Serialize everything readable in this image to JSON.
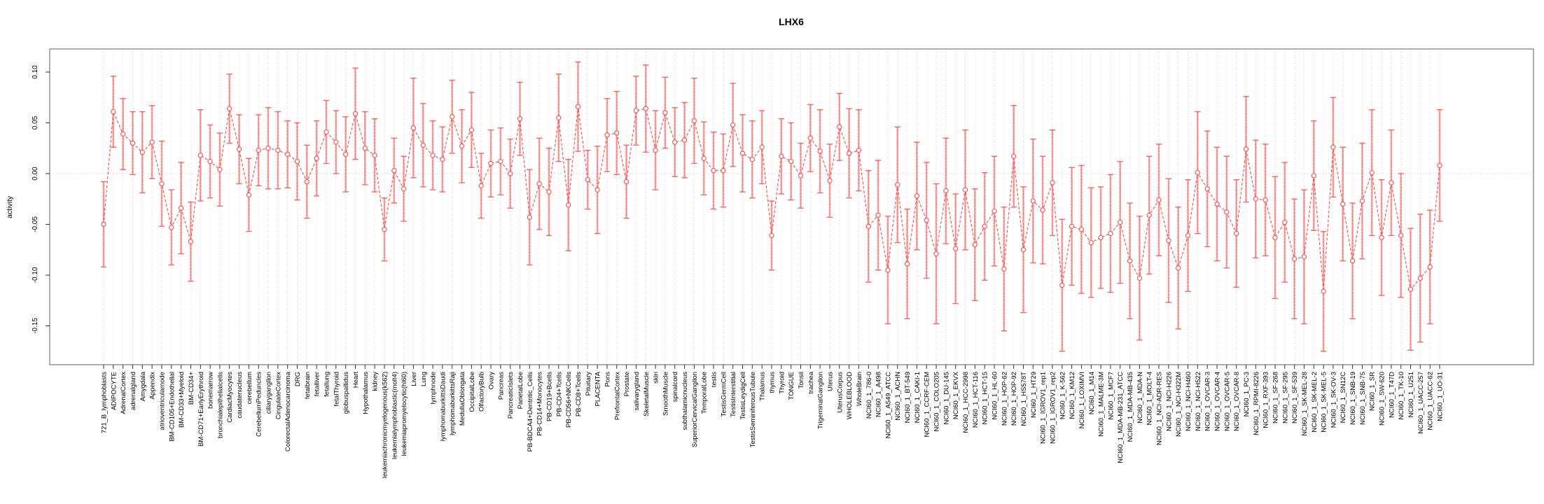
{
  "title": "LHX6",
  "ylabel": "activity",
  "chart_data": {
    "type": "scatter",
    "subtype": "points-with-error-bars",
    "title": "LHX6",
    "xlabel": "",
    "ylabel": "activity",
    "legend": "none",
    "grid": "vertical-dashed-per-category, dotted-zero-line",
    "ylim": [
      -0.188,
      0.123
    ],
    "ytick_labels": [
      "0.10",
      "0.05",
      "0.00",
      "-0.05",
      "-0.10",
      "-0.15"
    ],
    "point_shape": "open-circle",
    "line_style": "dashed-red-connecting-line",
    "colors": {
      "point": "#f0524f",
      "line": "#f0524f",
      "error_bar": "#f9a6a3",
      "error_cap": "#ef6a66",
      "grid": "#dedede",
      "zero_line": "#cfcfcf",
      "box": "#8c8c8c",
      "axis": "#333333"
    },
    "categories": [
      "721_B_lymphoblasts",
      "ADIPOCYTE",
      "AdrenalCortex",
      "adrenalgland",
      "Amygdala",
      "Appendix",
      "atrioventricularnode",
      "BM-CD105+Endothelial",
      "BM-CD33+Myeloid",
      "BM-CD34+",
      "BM-CD71+EarlyErythroid",
      "bonemarrow",
      "bronchialepithelialcells",
      "CardiacMyocytes",
      "caudatenucleus",
      "cerebellum",
      "CerebellumPeduncles",
      "ciliaryganglion",
      "CingulateCortex",
      "ColorectalAdenocarcinoma",
      "DRG",
      "fetalbrain",
      "fetalliver",
      "fetallung",
      "fetalThyroid",
      "globuspallidus",
      "Heart",
      "Hypothalamus",
      "kidney",
      "leukemiachronicmyelogenous(k562)",
      "leukemialymphoblastic(molt4)",
      "leukemiapromyelocytic(hl60)",
      "Liver",
      "Lung",
      "lymphnode",
      "lymphomaburkittsDaudi",
      "lymphomaburkittsRaji",
      "MedullaOblongata",
      "OccipitalLobe",
      "OlfactoryBulb",
      "Ovary",
      "Pancreas",
      "PancreaticIslets",
      "ParietalLobe",
      "PB-BDCA4+Dentritic_Cells",
      "PB-CD14+Monocytes",
      "PB-CD19+Bcells",
      "PB-CD4+Tcells",
      "PB-CD56+NKCells",
      "PB-CD8+Tcells",
      "Pituitary",
      "PLACENTA",
      "Pons",
      "PrefrontalCortex",
      "Prostate",
      "salivarygland",
      "SkeletalMuscle",
      "skin",
      "SmoothMuscle",
      "spinalcord",
      "subthalamicnucleus",
      "SuperiorCervicalGanglion",
      "TemporalLobe",
      "testis",
      "TestisGermCell",
      "TestisInterstitial",
      "TestisLeydigCell",
      "TestisSeminiferousTubule",
      "Thalamus",
      "thymus",
      "Thyroid",
      "TONGUE",
      "Tonsil",
      "trachea",
      "TrigeminalGanglion",
      "Uterus",
      "UterusCorpus",
      "WHOLEBLOOD",
      "WholeBrain",
      "NCI60_1_786-0",
      "NCI60_1_A498",
      "NCI60_1_A549_ATCC",
      "NCI60_1_ACHN",
      "NCI60_1_BT-549",
      "NCI60_1_CAKI-1",
      "NCI60_1_CCRF-CEM",
      "NCI60_1_COLO205",
      "NCI60_1_DU-145",
      "NCI60_1_EKVX",
      "NCI60_1_HCC-2998",
      "NCI60_1_HCT-116",
      "NCI60_1_HCT-15",
      "NCI60_1_HL-60",
      "NCI60_1_HOP-62",
      "NCI60_1_HOP-92",
      "NCI60_1_HS578T",
      "NCI60_1_HT29",
      "NCI60_1_IGROV1_rep1",
      "NCI60_1_IGROV1_rep2",
      "NCI60_1_K-562",
      "NCI60_1_KM12",
      "NCI60_1_LOXIMVI",
      "NCI60_1_M14",
      "NCI60_1_MALME-3M",
      "NCI60_1_MCF7",
      "NCI60_1_MDA-MB-231_ATCC",
      "NCI60_1_MDA-MB-435",
      "NCI60_1_MDA-N",
      "NCI60_1_MOLT-4",
      "NCI60_1_NCI-ADR-RES",
      "NCI60_1_NCI-H226",
      "NCI60_1_NCI-H322M",
      "NCI60_1_NCI-H460",
      "NCI60_1_NCI-H522",
      "NCI60_1_OVCAR-3",
      "NCI60_1_OVCAR-4",
      "NCI60_1_OVCAR-5",
      "NCI60_1_OVCAR-8",
      "NCI60_1_PC-3",
      "NCI60_1_RPMI-8226",
      "NCI60_1_RXF-393",
      "NCI60_1_SF-268",
      "NCI60_1_SF-295",
      "NCI60_1_SF-539",
      "NCI60_1_SK-MEL-28",
      "NCI60_1_SK-MEL-2",
      "NCI60_1_SK-MEL-5",
      "NCI60_1_SK-OV-3",
      "NCI60_1_SN12C",
      "NCI60_1_SNB-19",
      "NCI60_1_SNB-75",
      "NCI60_1_SR",
      "NCI60_1_SW-620",
      "NCI60_1_T47D",
      "NCI60_1_TK-10",
      "NCI60_1_U251",
      "NCI60_1_UACC-257",
      "NCI60_1_UACC-62",
      "NCI60_1_UO-31"
    ],
    "values": [
      -0.05,
      0.061,
      0.039,
      0.03,
      0.021,
      0.031,
      -0.01,
      -0.053,
      -0.034,
      -0.067,
      0.018,
      0.012,
      0.004,
      0.064,
      0.024,
      -0.021,
      0.023,
      0.025,
      0.023,
      0.019,
      0.012,
      -0.008,
      0.015,
      0.041,
      0.031,
      0.019,
      0.059,
      0.025,
      0.018,
      -0.055,
      0.003,
      -0.015,
      0.045,
      0.028,
      0.018,
      0.014,
      0.056,
      0.027,
      0.043,
      -0.012,
      0.01,
      0.012,
      0.0,
      0.054,
      -0.043,
      -0.01,
      -0.018,
      0.055,
      -0.031,
      0.066,
      -0.006,
      -0.016,
      0.038,
      0.04,
      -0.008,
      0.062,
      0.064,
      0.023,
      0.06,
      0.031,
      0.033,
      0.052,
      0.015,
      0.003,
      0.003,
      0.048,
      0.02,
      0.014,
      0.026,
      -0.061,
      0.017,
      0.012,
      -0.002,
      0.035,
      0.022,
      -0.007,
      0.046,
      0.02,
      0.023,
      -0.052,
      -0.041,
      -0.095,
      -0.011,
      -0.089,
      -0.022,
      -0.046,
      -0.079,
      -0.017,
      -0.074,
      -0.016,
      -0.07,
      -0.052,
      -0.037,
      -0.094,
      0.017,
      -0.075,
      -0.027,
      -0.036,
      -0.009,
      -0.11,
      -0.052,
      -0.055,
      -0.068,
      -0.063,
      -0.059,
      -0.048,
      -0.086,
      -0.103,
      -0.041,
      -0.026,
      -0.066,
      -0.093,
      -0.061,
      0.001,
      -0.015,
      -0.03,
      -0.038,
      -0.059,
      0.024,
      -0.025,
      -0.026,
      -0.063,
      -0.048,
      -0.084,
      -0.082,
      -0.002,
      -0.116,
      0.026,
      -0.03,
      -0.086,
      -0.027,
      0.001,
      -0.063,
      -0.009,
      -0.061,
      -0.114,
      -0.103,
      -0.092,
      0.008
    ],
    "errors": [
      0.042,
      0.035,
      0.035,
      0.031,
      0.04,
      0.036,
      0.042,
      0.037,
      0.045,
      0.039,
      0.045,
      0.036,
      0.036,
      0.034,
      0.034,
      0.036,
      0.035,
      0.04,
      0.038,
      0.033,
      0.038,
      0.036,
      0.037,
      0.031,
      0.031,
      0.037,
      0.045,
      0.036,
      0.036,
      0.031,
      0.032,
      0.032,
      0.049,
      0.041,
      0.034,
      0.032,
      0.036,
      0.036,
      0.037,
      0.032,
      0.033,
      0.033,
      0.034,
      0.036,
      0.047,
      0.045,
      0.043,
      0.043,
      0.045,
      0.044,
      0.029,
      0.043,
      0.036,
      0.041,
      0.036,
      0.034,
      0.043,
      0.039,
      0.035,
      0.034,
      0.037,
      0.042,
      0.036,
      0.038,
      0.036,
      0.041,
      0.038,
      0.038,
      0.036,
      0.034,
      0.037,
      0.038,
      0.032,
      0.033,
      0.041,
      0.036,
      0.033,
      0.044,
      0.04,
      0.055,
      0.054,
      0.053,
      0.057,
      0.054,
      0.053,
      0.057,
      0.069,
      0.052,
      0.054,
      0.059,
      0.055,
      0.053,
      0.054,
      0.061,
      0.05,
      0.062,
      0.061,
      0.053,
      0.052,
      0.065,
      0.058,
      0.063,
      0.054,
      0.05,
      0.058,
      0.06,
      0.057,
      0.061,
      0.058,
      0.055,
      0.061,
      0.06,
      0.055,
      0.06,
      0.057,
      0.056,
      0.055,
      0.053,
      0.052,
      0.058,
      0.055,
      0.06,
      0.059,
      0.059,
      0.066,
      0.054,
      0.059,
      0.049,
      0.056,
      0.057,
      0.057,
      0.062,
      0.057,
      0.052,
      0.061,
      0.06,
      0.063,
      0.056,
      0.055
    ]
  }
}
